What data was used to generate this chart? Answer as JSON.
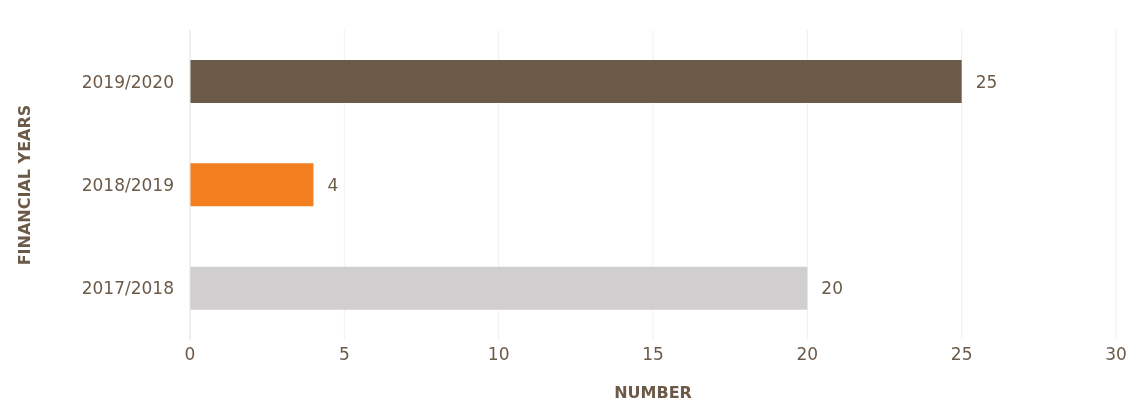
{
  "chart_data": {
    "type": "bar",
    "orientation": "horizontal",
    "xlabel": "NUMBER",
    "ylabel": "FINANCIAL YEARS",
    "categories": [
      "2019/2020",
      "2018/2019",
      "2017/2018"
    ],
    "values": [
      25,
      4,
      20
    ],
    "colors": [
      "#6b5a48",
      "#f47f20",
      "#d0cecf"
    ],
    "xlim": [
      0,
      30
    ],
    "xticks": [
      0,
      5,
      10,
      15,
      20,
      25,
      30
    ],
    "grid": "x",
    "data_labels": true
  }
}
